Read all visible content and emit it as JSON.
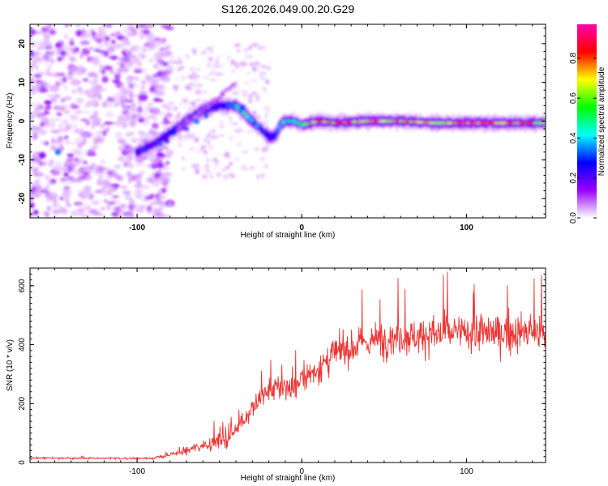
{
  "chart_data": [
    {
      "type": "heatmap",
      "title": "S126.2026.049.00.20.G29",
      "xlabel": "Height of straight line (km)",
      "ylabel": "Frequency (Hz)",
      "xlim": [
        -165,
        148
      ],
      "ylim": [
        -25,
        25
      ],
      "xticks": [
        -100,
        0,
        100
      ],
      "yticks": [
        -20,
        -10,
        0,
        10,
        20
      ],
      "colorbar": {
        "label": "Normalized spectral amplitude",
        "range": [
          0,
          0.97
        ],
        "ticks": [
          0.0,
          0.2,
          0.4,
          0.6,
          0.8
        ],
        "colormap": [
          "#ffffff",
          "#9900ff",
          "#0000ff",
          "#00ffff",
          "#00ff00",
          "#ffff00",
          "#ff0000",
          "#ff00aa"
        ]
      },
      "ridge": {
        "x": [
          -100,
          -90,
          -80,
          -70,
          -60,
          -50,
          -40,
          -35,
          -30,
          -25,
          -20,
          -17,
          -15,
          -13,
          -10,
          -5,
          0,
          10,
          20,
          40,
          60,
          80,
          100,
          120,
          148
        ],
        "freq": [
          -8,
          -6,
          -3,
          0,
          3,
          4,
          4,
          2,
          0,
          -2,
          -4,
          -4,
          -3,
          -1,
          0,
          0,
          -1,
          0,
          -0.5,
          0,
          0,
          -0.5,
          -0.5,
          -0.5,
          -0.5
        ],
        "amplitude": [
          0.25,
          0.2,
          0.25,
          0.3,
          0.3,
          0.25,
          0.45,
          0.5,
          0.4,
          0.35,
          0.3,
          0.25,
          0.3,
          0.4,
          0.45,
          0.5,
          0.55,
          0.7,
          0.75,
          0.75,
          0.8,
          0.8,
          0.85,
          0.85,
          0.7
        ]
      }
    },
    {
      "type": "line",
      "xlabel": "Height of straight line (km)",
      "ylabel": "SNR (10 * v/v)",
      "xlim": [
        -165,
        148
      ],
      "ylim": [
        0,
        660
      ],
      "xticks": [
        -100,
        0,
        100
      ],
      "yticks": [
        0,
        200,
        400,
        600
      ],
      "series": [
        {
          "name": "SNR",
          "color": "#ee3333",
          "x": [
            -165,
            -140,
            -120,
            -100,
            -90,
            -80,
            -70,
            -60,
            -55,
            -50,
            -45,
            -40,
            -35,
            -30,
            -25,
            -20,
            -15,
            -10,
            -5,
            0,
            5,
            10,
            15,
            20,
            25,
            30,
            40,
            50,
            60,
            70,
            80,
            90,
            100,
            110,
            120,
            130,
            140,
            148
          ],
          "mean": [
            15,
            15,
            14,
            14,
            15,
            25,
            40,
            60,
            65,
            75,
            70,
            120,
            150,
            180,
            220,
            240,
            250,
            260,
            240,
            290,
            300,
            320,
            340,
            370,
            380,
            390,
            410,
            420,
            430,
            430,
            435,
            440,
            440,
            440,
            440,
            440,
            440,
            440
          ],
          "noise": [
            5,
            5,
            5,
            5,
            6,
            12,
            20,
            30,
            35,
            40,
            40,
            50,
            60,
            70,
            70,
            70,
            70,
            70,
            70,
            75,
            75,
            80,
            85,
            90,
            90,
            90,
            90,
            95,
            100,
            100,
            100,
            100,
            100,
            100,
            100,
            100,
            100,
            100
          ]
        }
      ]
    }
  ]
}
